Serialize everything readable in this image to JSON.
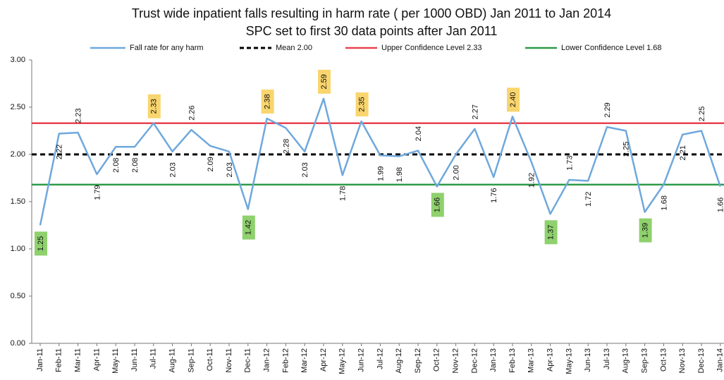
{
  "chart_data": {
    "type": "line",
    "title": "Trust wide inpatient falls resulting in harm rate ( per 1000 OBD) Jan 2011 to Jan 2014",
    "subtitle": "SPC set to first 30 data points after Jan 2011",
    "categories": [
      "Jan-11",
      "Feb-11",
      "Mar-11",
      "Apr-11",
      "May-11",
      "Jun-11",
      "Jul-11",
      "Aug-11",
      "Sep-11",
      "Oct-11",
      "Nov-11",
      "Dec-11",
      "Jan-12",
      "Feb-12",
      "Mar-12",
      "Apr-12",
      "May-12",
      "Jun-12",
      "Jul-12",
      "Aug-12",
      "Sep-12",
      "Oct-12",
      "Nov-12",
      "Dec-12",
      "Jan-13",
      "Feb-13",
      "Mar-13",
      "Apr-13",
      "May-13",
      "Jun-13",
      "Jul-13",
      "Aug-13",
      "Sep-13",
      "Oct-13",
      "Nov-13",
      "Dec-13",
      "Jan-14"
    ],
    "series": [
      {
        "name": "Fall rate for any harm",
        "color": "#6fa8dc",
        "values": [
          1.25,
          2.22,
          2.23,
          1.79,
          2.08,
          2.08,
          2.33,
          2.03,
          2.26,
          2.09,
          2.03,
          1.42,
          2.38,
          2.28,
          2.03,
          2.59,
          1.78,
          2.35,
          1.99,
          1.98,
          2.04,
          1.66,
          2.0,
          2.27,
          1.76,
          2.4,
          1.92,
          1.37,
          1.73,
          1.72,
          2.29,
          2.25,
          1.39,
          1.68,
          2.21,
          2.25,
          1.66
        ],
        "value_labels": [
          "1.25",
          "2.22",
          "2.23",
          "1.79",
          "2.08",
          "2.08",
          "2.33",
          "2.03",
          "2.26",
          "2.09",
          "2.03",
          "1.42",
          "2.38",
          "2.28",
          "2.03",
          "2.59",
          "1.78",
          "2.35",
          "1.99",
          "1.98",
          "2.04",
          "1.66",
          "2.00",
          "2.27",
          "1.76",
          "2.40",
          "1.92",
          "1.37",
          "1.73",
          "1.72",
          "2.29",
          "2.25",
          "1.39",
          "1.68",
          "2.21",
          "2.25",
          "1.66"
        ],
        "value_label_colors": [
          "#8fd16d",
          null,
          null,
          null,
          null,
          null,
          "#f9d56e",
          null,
          null,
          null,
          null,
          "#8fd16d",
          "#f9d56e",
          null,
          null,
          "#f9d56e",
          null,
          "#f9d56e",
          null,
          null,
          null,
          "#8fd16d",
          null,
          null,
          null,
          "#f9d56e",
          null,
          "#8fd16d",
          null,
          null,
          null,
          null,
          "#8fd16d",
          null,
          null,
          null,
          null
        ]
      }
    ],
    "reference_lines": [
      {
        "name": "Mean 2.00",
        "value": 2.0,
        "color": "#000000",
        "dashed": true
      },
      {
        "name": "Upper Confidence Level 2.33",
        "value": 2.33,
        "color": "#e8434f",
        "dashed": false
      },
      {
        "name": "Lower Confidence Level 1.68",
        "value": 1.68,
        "color": "#2e9a48",
        "dashed": false
      }
    ],
    "ylim": [
      0,
      3
    ],
    "yticks": [
      {
        "value": 0,
        "label": "0.00"
      },
      {
        "value": 0.5,
        "label": "0.50"
      },
      {
        "value": 1,
        "label": "1.00"
      },
      {
        "value": 1.5,
        "label": "1.50"
      },
      {
        "value": 2,
        "label": "2.00"
      },
      {
        "value": 2.5,
        "label": "2.50"
      },
      {
        "value": 3,
        "label": "3.00"
      }
    ],
    "grid": false,
    "legend": "top"
  }
}
